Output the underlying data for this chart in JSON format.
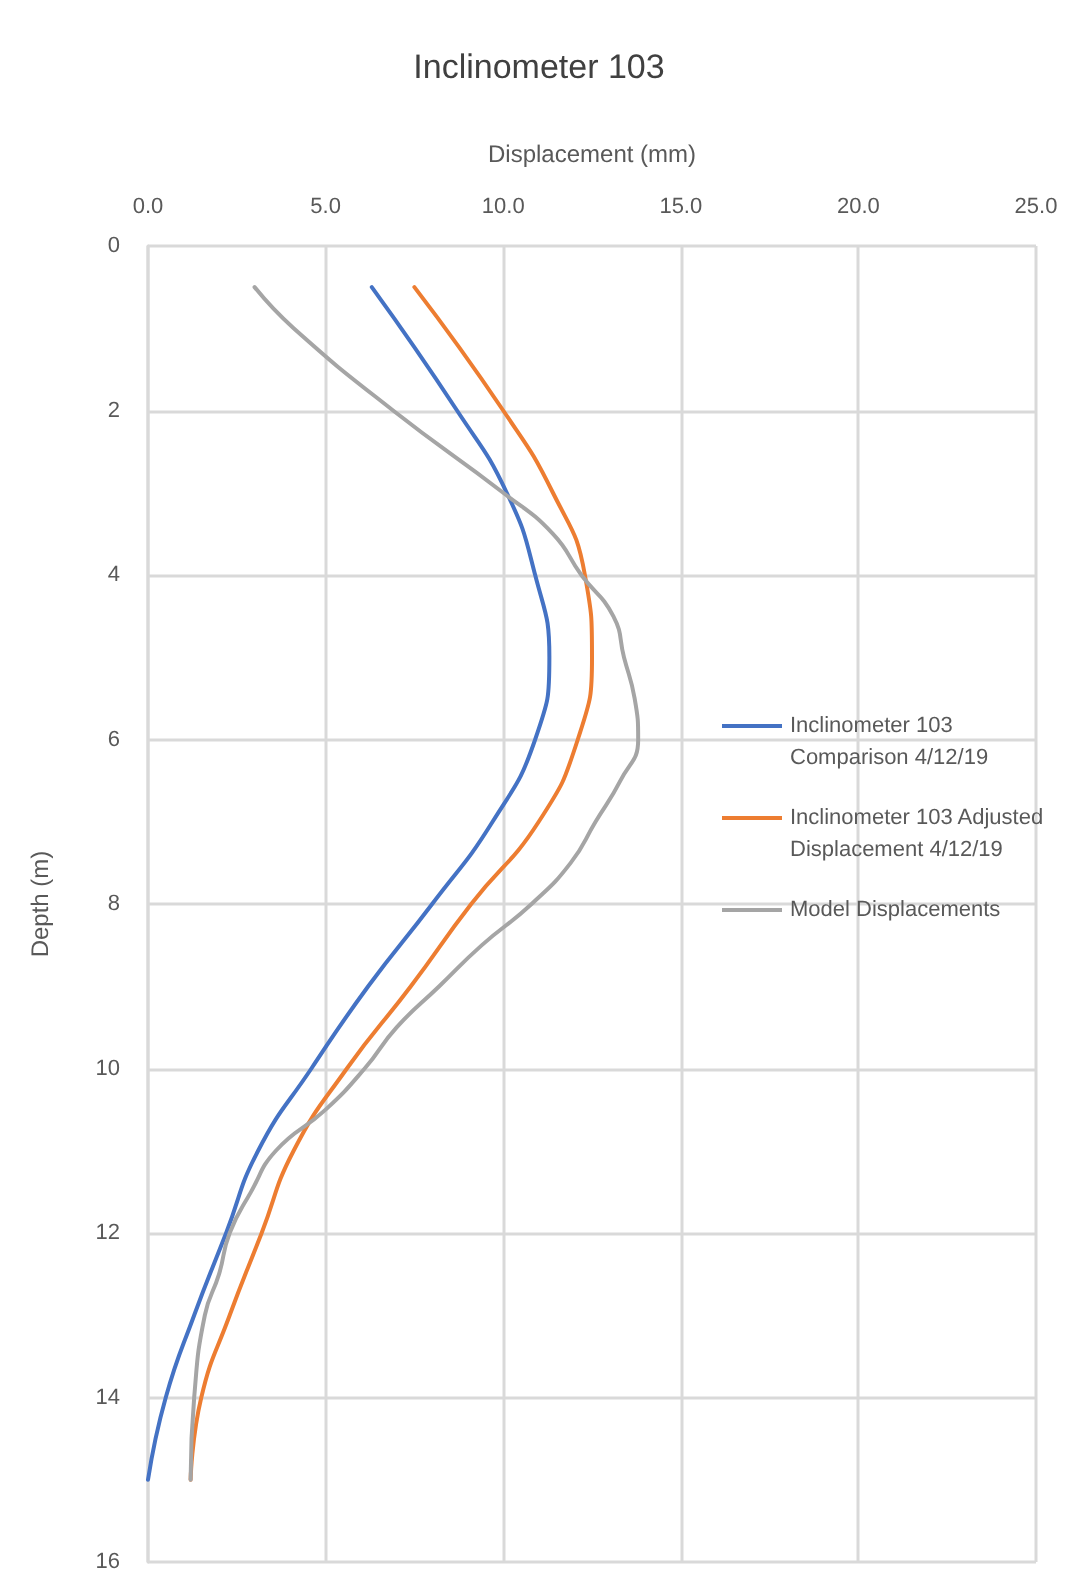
{
  "chart_data": {
    "type": "line",
    "title": "Inclinometer 103",
    "xlabel": "Displacement (mm)",
    "ylabel": "Depth (m)",
    "xlim": [
      0,
      25
    ],
    "xticks": [
      {
        "value": 0,
        "label": "0.0"
      },
      {
        "value": 5,
        "label": "5.0"
      },
      {
        "value": 10,
        "label": "10.0"
      },
      {
        "value": 15,
        "label": "15.0"
      },
      {
        "value": 20,
        "label": "20.0"
      },
      {
        "value": 25,
        "label": "25.0"
      }
    ],
    "ylim": [
      16,
      0
    ],
    "yticks": [
      0,
      2,
      4,
      6,
      8,
      10,
      12,
      14,
      16
    ],
    "grid": true,
    "legend": "right",
    "marker": "none",
    "line_style": "solid",
    "series": [
      {
        "name": "Inclinometer 103 Comparison 4/12/19",
        "color": "#4472c4",
        "x": [
          6.3,
          8.7,
          10.1,
          10.9,
          11.3,
          10.9,
          9.7,
          8.0,
          6.2,
          4.6,
          3.1,
          2.2,
          1.3,
          0.5,
          0.0
        ],
        "values": [
          0.5,
          2,
          3,
          4,
          5,
          6,
          7,
          8,
          9,
          10,
          11,
          12,
          13,
          14,
          15
        ]
      },
      {
        "name": "Inclinometer 103 Adjusted Displacement 4/12/19",
        "color": "#ed7d31",
        "x": [
          7.5,
          10.0,
          11.4,
          12.3,
          12.5,
          12.1,
          11.0,
          9.1,
          7.4,
          5.6,
          4.1,
          3.2,
          2.3,
          1.5,
          1.2
        ],
        "values": [
          0.5,
          2,
          3,
          4,
          5,
          6,
          7,
          8,
          9,
          10,
          11,
          12,
          13,
          14,
          15
        ]
      },
      {
        "name": "Model Displacements",
        "color": "#a5a5a5",
        "x": [
          3.0,
          4.1,
          6.9,
          10.0,
          11.4,
          12.2,
          13.1,
          13.4,
          13.7,
          13.8,
          13.3,
          12.6,
          11.9,
          10.8,
          9.4,
          8.2,
          7.0,
          6.1,
          5.0,
          3.6,
          2.9,
          2.3,
          2.0,
          1.6,
          1.3,
          1.2
        ],
        "values": [
          0.5,
          1,
          2,
          3,
          3.5,
          4,
          4.5,
          5,
          5.5,
          6,
          6.5,
          7,
          7.5,
          8,
          8.5,
          9,
          9.5,
          10,
          10.5,
          11,
          11.5,
          12,
          12.5,
          13,
          14,
          15
        ]
      }
    ]
  }
}
